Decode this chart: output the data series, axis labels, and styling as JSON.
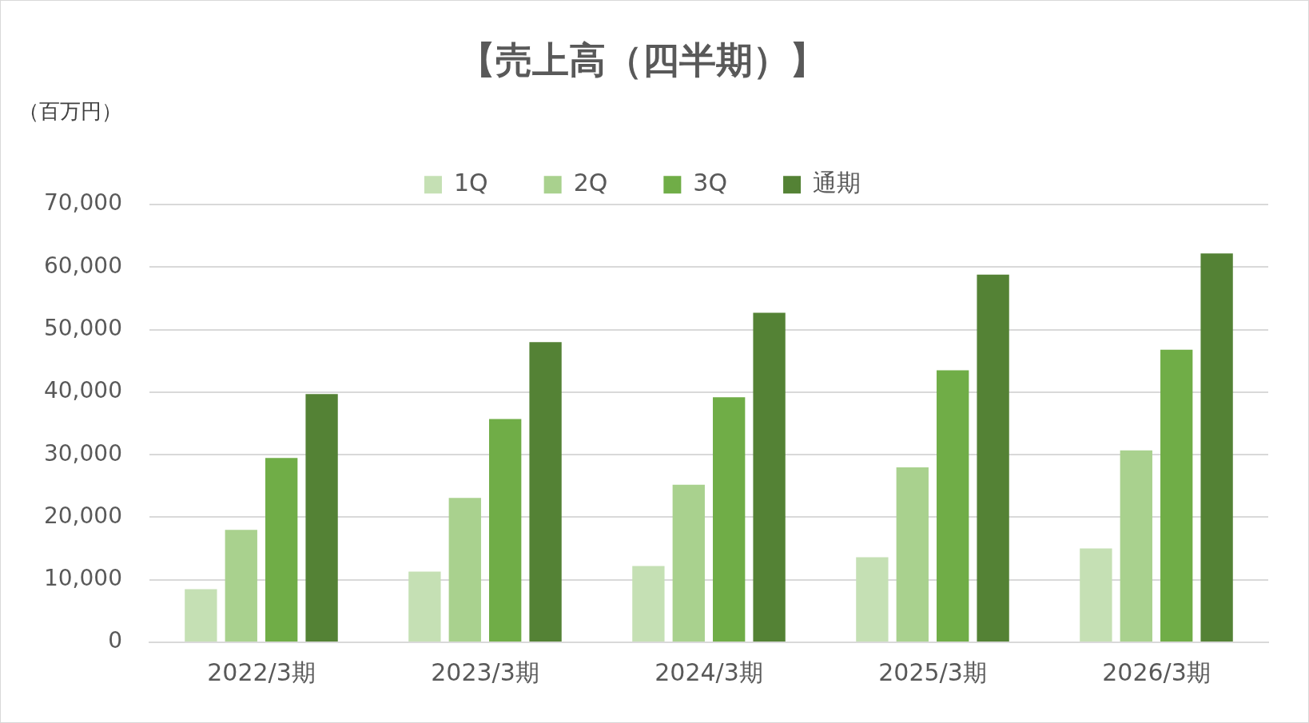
{
  "chart_data": {
    "type": "bar",
    "title": "【売上高（四半期）】",
    "ylabel": "（百万円）",
    "categories": [
      "2022/3期",
      "2023/3期",
      "2024/3期",
      "2025/3期",
      "2026/3期"
    ],
    "series": [
      {
        "name": "1Q",
        "color": "#c5e0b4",
        "values": [
          8500,
          11300,
          12200,
          13600,
          15000
        ]
      },
      {
        "name": "2Q",
        "color": "#a9d18e",
        "values": [
          18000,
          23100,
          25200,
          28000,
          30700
        ]
      },
      {
        "name": "3Q",
        "color": "#70ad47",
        "values": [
          29500,
          35700,
          39200,
          43500,
          46800
        ]
      },
      {
        "name": "通期",
        "color": "#548235",
        "values": [
          39700,
          48000,
          52700,
          58800,
          62200
        ]
      }
    ],
    "ylim": [
      0,
      70000
    ],
    "yticks": [
      {
        "value": 0,
        "label": "0"
      },
      {
        "value": 10000,
        "label": "10,000"
      },
      {
        "value": 20000,
        "label": "20,000"
      },
      {
        "value": 30000,
        "label": "30,000"
      },
      {
        "value": 40000,
        "label": "40,000"
      },
      {
        "value": 50000,
        "label": "50,000"
      },
      {
        "value": 60000,
        "label": "60,000"
      },
      {
        "value": 70000,
        "label": "70,000"
      }
    ],
    "grid": "y",
    "legend": "top"
  }
}
